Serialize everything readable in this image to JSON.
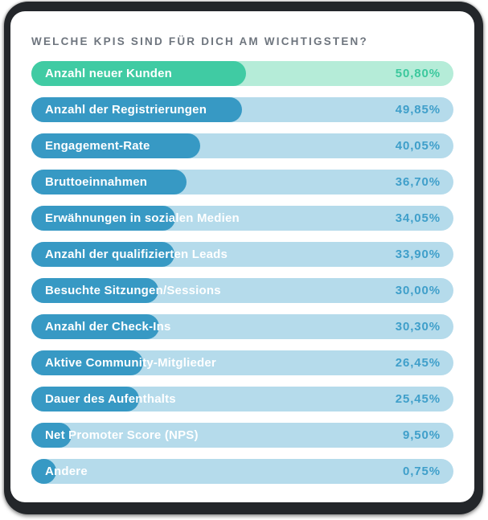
{
  "title": "WELCHE KPIS SIND FÜR DICH AM WICHTIGSTEN?",
  "colors": {
    "frame_bg": "#23262a",
    "card_bg": "#ffffff",
    "title_text": "#6e757e",
    "label_text": "#ffffff",
    "highlight_fill": "#40cba3",
    "highlight_track": "#b5ecd8",
    "highlight_value": "#3bc89d",
    "default_fill": "#3799c4",
    "default_track": "#b5dbeb",
    "default_value": "#3f9fca"
  },
  "chart_data": {
    "type": "bar",
    "orientation": "horizontal",
    "title": "WELCHE KPIS SIND FÜR DICH AM WICHTIGSTEN?",
    "xlabel": "",
    "ylabel": "",
    "unit": "%",
    "xlim": [
      0,
      100
    ],
    "grid": false,
    "legend": false,
    "highlight_index": 0,
    "categories": [
      "Anzahl neuer Kunden",
      "Anzahl der Registrierungen",
      "Engagement-Rate",
      "Bruttoeinnahmen",
      "Erwähnungen in sozialen Medien",
      "Anzahl der qualifizierten Leads",
      "Besuchte Sitzungen/Sessions",
      "Anzahl der Check-Ins",
      "Aktive Community-Mitglieder",
      "Dauer des Aufenthalts",
      "Net Promoter Score (NPS)",
      "Andere"
    ],
    "values": [
      50.8,
      49.85,
      40.05,
      36.7,
      34.05,
      33.9,
      30.0,
      30.3,
      26.45,
      25.45,
      9.5,
      0.75
    ],
    "value_labels": [
      "50,80%",
      "49,85%",
      "40,05%",
      "36,70%",
      "34,05%",
      "33,90%",
      "30,00%",
      "30,30%",
      "26,45%",
      "25,45%",
      "9,50%",
      "0,75%"
    ]
  }
}
